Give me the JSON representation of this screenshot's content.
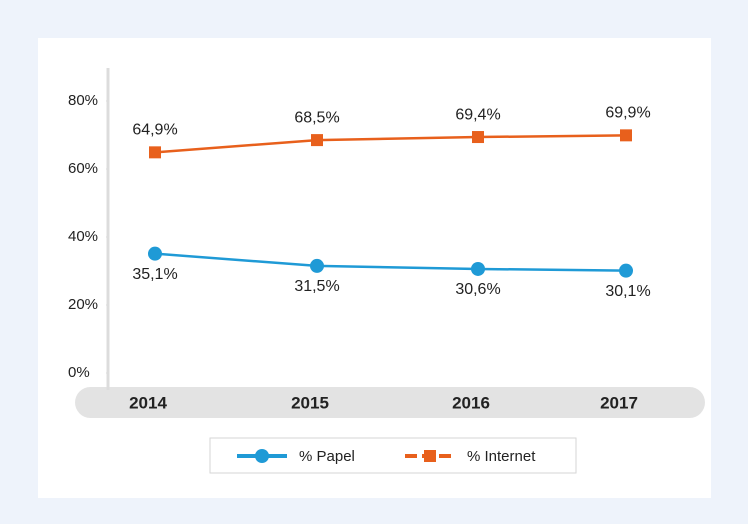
{
  "chart_data": {
    "type": "line",
    "categories": [
      "2014",
      "2015",
      "2016",
      "2017"
    ],
    "series": [
      {
        "name": "% Papel",
        "color": "#1f9ad6",
        "values": [
          35.1,
          31.5,
          30.6,
          30.1
        ],
        "value_labels": [
          "35,1%",
          "31,5%",
          "30,6%",
          "30,1%"
        ],
        "marker": "circle"
      },
      {
        "name": "% Internet",
        "color": "#e8601c",
        "values": [
          64.9,
          68.5,
          69.4,
          69.9
        ],
        "value_labels": [
          "64,9%",
          "68,5%",
          "69,4%",
          "69,9%"
        ],
        "marker": "square"
      }
    ],
    "ylim": [
      0,
      90
    ],
    "yticks": [
      {
        "value": 0,
        "label": "0%"
      },
      {
        "value": 20,
        "label": "20%"
      },
      {
        "value": 40,
        "label": "40%"
      },
      {
        "value": 60,
        "label": "60%"
      },
      {
        "value": 80,
        "label": "80%"
      }
    ],
    "legend": "bottom"
  }
}
